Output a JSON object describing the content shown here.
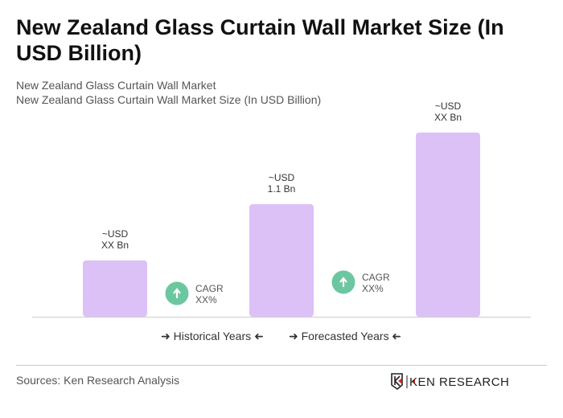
{
  "title": "New Zealand Glass Curtain Wall Market Size (In USD Billion)",
  "subtitle1": "New Zealand Glass Curtain Wall Market",
  "subtitle2": "New Zealand Glass Curtain Wall Market Size (In USD Billion)",
  "chart_data": {
    "type": "bar",
    "values": [
      0.55,
      1.1,
      1.8
    ],
    "data_labels": [
      [
        "~USD",
        "XX Bn"
      ],
      [
        "~USD",
        "1.1 Bn"
      ],
      [
        "~USD",
        "XX Bn"
      ]
    ],
    "ylim": [
      0,
      1.9
    ],
    "bar_color": "#dcc1f7",
    "cagr": [
      {
        "label": "CAGR",
        "value": "XX%"
      },
      {
        "label": "CAGR",
        "value": "XX%"
      }
    ],
    "cagr_color": "#6cc7a1",
    "legend": [
      "Historical Years",
      "Forecasted Years"
    ]
  },
  "source": "Sources: Ken Research Analysis",
  "logo_text": "KEN RESEARCH"
}
